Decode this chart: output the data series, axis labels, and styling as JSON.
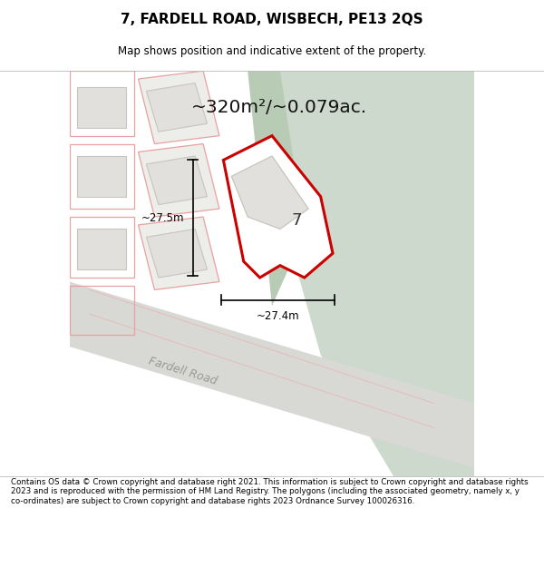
{
  "title": "7, FARDELL ROAD, WISBECH, PE13 2QS",
  "subtitle": "Map shows position and indicative extent of the property.",
  "area_text": "~320m²/~0.079ac.",
  "dim_width": "~27.4m",
  "dim_height": "~27.5m",
  "property_label": "7",
  "footer_text": "Contains OS data © Crown copyright and database right 2021. This information is subject to Crown copyright and database rights 2023 and is reproduced with the permission of HM Land Registry. The polygons (including the associated geometry, namely x, y co-ordinates) are subject to Crown copyright and database rights 2023 Ordnance Survey 100026316.",
  "bg_color": "#f0eeea",
  "green_area_color": "#cdd9cc",
  "green_strip_color": "#b8ccb5",
  "red_outline_color": "#cc0000",
  "fig_width": 6.0,
  "fig_height": 6.25,
  "road_color": "#d8d8d4",
  "plot_outline_color": "#e8a0a0",
  "building_fill": "#e2e0dc",
  "building_edge": "#c8c4c0"
}
